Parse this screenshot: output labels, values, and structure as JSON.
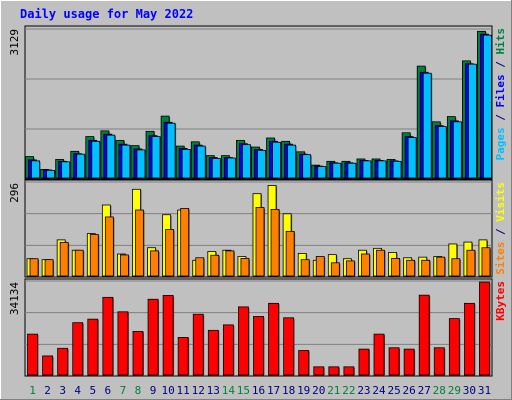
{
  "chart_data": {
    "type": "bar",
    "title": "Daily usage for May 2022",
    "categories": [
      "1",
      "2",
      "3",
      "4",
      "5",
      "6",
      "7",
      "8",
      "9",
      "10",
      "11",
      "12",
      "13",
      "14",
      "15",
      "16",
      "17",
      "18",
      "19",
      "20",
      "21",
      "22",
      "23",
      "24",
      "25",
      "26",
      "27",
      "28",
      "29",
      "30",
      "31"
    ],
    "weekend_days": [
      "1",
      "7",
      "8",
      "14",
      "15",
      "21",
      "22",
      "28",
      "29"
    ],
    "panels": [
      {
        "name": "hits-files-pages",
        "ylabel_parts": [
          {
            "text": "Pages",
            "color": "#00c0ff"
          },
          {
            "text": " / ",
            "color": "#000080"
          },
          {
            "text": "Files",
            "color": "#0000ff"
          },
          {
            "text": " / ",
            "color": "#000080"
          },
          {
            "text": "Hits",
            "color": "#008040"
          }
        ],
        "max_label": "3129",
        "ylim": [
          0,
          3129
        ],
        "series": [
          {
            "name": "Hits",
            "color": "#008040",
            "values": [
              450,
              180,
              390,
              560,
              870,
              990,
              790,
              680,
              980,
              1300,
              670,
              760,
              470,
              470,
              790,
              650,
              840,
              770,
              550,
              270,
              350,
              350,
              400,
              400,
              390,
              950,
              2350,
              1180,
              1290,
              2460,
              3080
            ]
          },
          {
            "name": "Files",
            "color": "#0000ff",
            "values": [
              380,
              170,
              350,
              510,
              790,
              920,
              710,
              610,
              890,
              1170,
              620,
              690,
              430,
              430,
              720,
              600,
              770,
              710,
              500,
              250,
              320,
              320,
              370,
              370,
              360,
              870,
              2220,
              1100,
              1200,
              2400,
              3020
            ]
          },
          {
            "name": "Pages",
            "color": "#00c0ff",
            "values": [
              360,
              160,
              340,
              500,
              770,
              900,
              690,
              590,
              870,
              1150,
              600,
              670,
              410,
              420,
              700,
              580,
              750,
              690,
              490,
              240,
              310,
              310,
              360,
              360,
              350,
              850,
              2200,
              1080,
              1180,
              2390,
              3000
            ]
          }
        ]
      },
      {
        "name": "visits-sites",
        "ylabel_parts": [
          {
            "text": "Sites",
            "color": "#ff8000"
          },
          {
            "text": " / ",
            "color": "#000080"
          },
          {
            "text": "Visits",
            "color": "#ffff00"
          }
        ],
        "max_label": "296",
        "ylim": [
          0,
          296
        ],
        "series": [
          {
            "name": "Visits",
            "color": "#ffff00",
            "values": [
              55,
              52,
              115,
              82,
              135,
              226,
              70,
              276,
              90,
              195,
              210,
              50,
              78,
              82,
              62,
              262,
              288,
              198,
              72,
              50,
              68,
              55,
              82,
              88,
              75,
              58,
              60,
              62,
              102,
              108,
              115
            ]
          },
          {
            "name": "Sites",
            "color": "#ff8000",
            "values": [
              55,
              52,
              107,
              82,
              132,
              188,
              67,
              210,
              80,
              148,
              215,
              58,
              66,
              80,
              56,
              218,
              212,
              142,
              52,
              62,
              42,
              48,
              70,
              82,
              56,
              50,
              50,
              60,
              55,
              82,
              90
            ]
          }
        ]
      },
      {
        "name": "kbytes",
        "ylabel_parts": [
          {
            "text": "KBytes",
            "color": "#ff0000"
          }
        ],
        "max_label": "34134",
        "ylim": [
          0,
          34134
        ],
        "series": [
          {
            "name": "KBytes",
            "color": "#ff0000",
            "values": [
              15000,
              7000,
              9800,
              19200,
              20500,
              28500,
              23200,
              16000,
              27800,
              29200,
              13800,
              22300,
              16400,
              18400,
              25000,
              21500,
              26300,
              21000,
              9000,
              3000,
              3000,
              3000,
              9500,
              15000,
              10000,
              9500,
              29300,
              10000,
              20700,
              26300,
              34100
            ]
          }
        ]
      }
    ]
  }
}
